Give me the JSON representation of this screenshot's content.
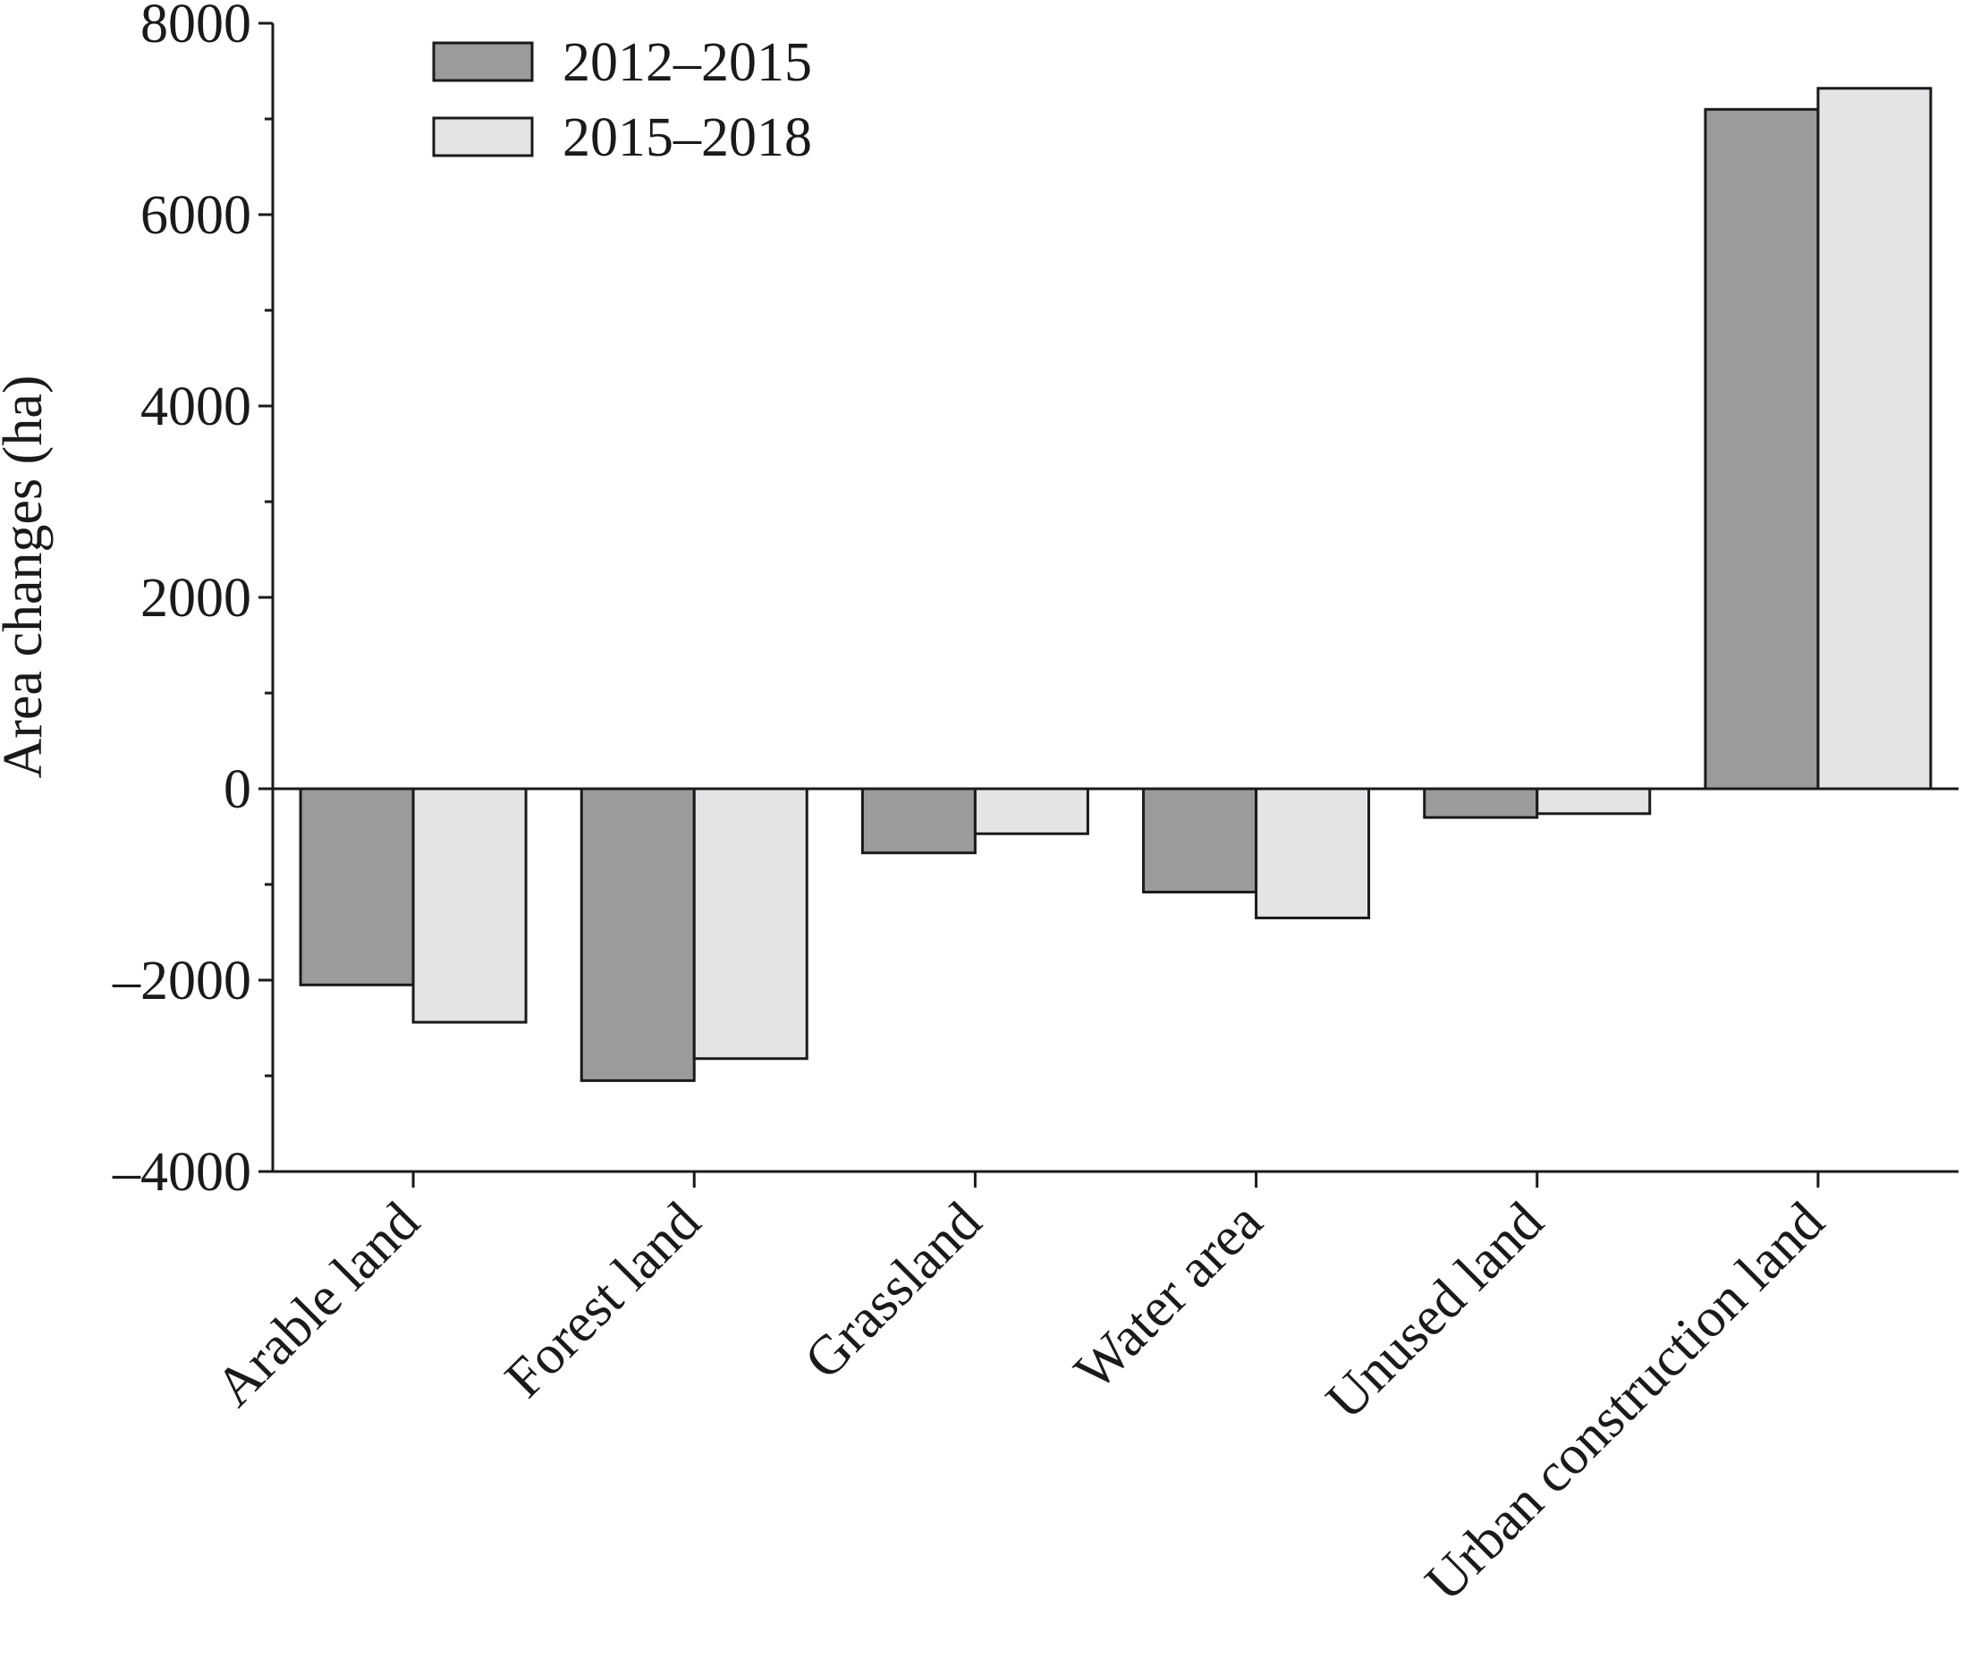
{
  "chart_data": {
    "type": "bar",
    "ylabel": "Area changes (ha)",
    "xlabel": "",
    "ylim": [
      -4000,
      8000
    ],
    "yticks": [
      -4000,
      -2000,
      0,
      2000,
      4000,
      6000,
      8000
    ],
    "ytick_labels": [
      "–4000",
      "–2000",
      "0",
      "2000",
      "4000",
      "6000",
      "8000"
    ],
    "categories": [
      "Arable land",
      "Forest land",
      "Grassland",
      "Water area",
      "Unused land",
      "Urban construction land"
    ],
    "series": [
      {
        "name": "2012–2015",
        "color": "#9b9b9b",
        "values": [
          -2050,
          -3050,
          -670,
          -1080,
          -300,
          7100
        ]
      },
      {
        "name": "2015–2018",
        "color": "#e4e4e6",
        "values": [
          -2440,
          -2820,
          -470,
          -1350,
          -260,
          7320
        ]
      }
    ],
    "legend_position": "top-left",
    "grid": false
  }
}
